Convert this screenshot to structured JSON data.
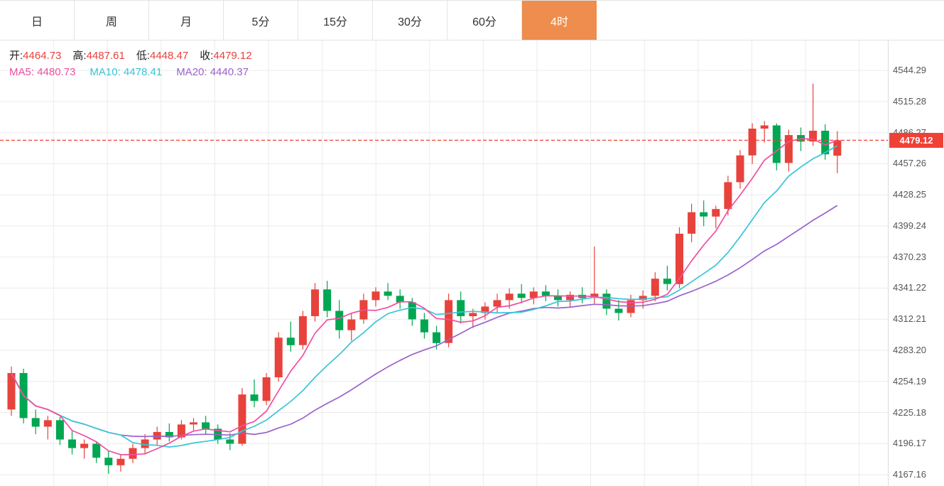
{
  "tabs": [
    {
      "label": "日",
      "active": false
    },
    {
      "label": "周",
      "active": false
    },
    {
      "label": "月",
      "active": false
    },
    {
      "label": "5分",
      "active": false
    },
    {
      "label": "15分",
      "active": false
    },
    {
      "label": "30分",
      "active": false
    },
    {
      "label": "60分",
      "active": false
    },
    {
      "label": "4时",
      "active": true
    }
  ],
  "ohlc": {
    "open_label": "开:",
    "open": "4464.73",
    "high_label": "高:",
    "high": "4487.61",
    "low_label": "低:",
    "low": "4448.47",
    "close_label": "收:",
    "close": "4479.12"
  },
  "ma_info": {
    "ma5_label": "MA5:",
    "ma5": "4480.73",
    "ma10_label": "MA10:",
    "ma10": "4478.41",
    "ma20_label": "MA20:",
    "ma20": "4440.37"
  },
  "price_tag": "4479.12",
  "colors": {
    "up": "#e8423c",
    "down": "#00a651",
    "ma5": "#f04fa0",
    "ma10": "#38c5d8",
    "ma20": "#9b62cc",
    "active_tab": "#ee8d4d",
    "dashed_line": "#ef4136",
    "grid": "#ebebeb",
    "axis_separator": "#dcdcdc",
    "axis_text": "#555555"
  },
  "chart_data": {
    "type": "candlestick",
    "timeframe_selected": "4时",
    "ylim": [
      4156.6,
      4572.2
    ],
    "y_axis_labels": [
      "4544.29",
      "4515.28",
      "4486.27",
      "4457.26",
      "4428.25",
      "4399.24",
      "4370.23",
      "4341.22",
      "4312.21",
      "4283.20",
      "4254.19",
      "4225.18",
      "4196.17",
      "4167.16"
    ],
    "y_tick_step": 29.01,
    "current_price": 4479.12,
    "last_bar": {
      "open": 4464.73,
      "high": 4487.61,
      "low": 4448.47,
      "close": 4479.12
    },
    "moving_averages": {
      "MA5": 4480.73,
      "MA10": 4478.41,
      "MA20": 4440.37
    },
    "legend": [
      "MA5",
      "MA10",
      "MA20"
    ],
    "grid": true,
    "candles": [
      [
        4228,
        4268,
        4222,
        4262
      ],
      [
        4262,
        4266,
        4215,
        4220
      ],
      [
        4220,
        4228,
        4205,
        4212
      ],
      [
        4212,
        4222,
        4200,
        4218
      ],
      [
        4218,
        4221,
        4195,
        4200
      ],
      [
        4200,
        4208,
        4186,
        4192
      ],
      [
        4192,
        4200,
        4182,
        4196
      ],
      [
        4196,
        4198,
        4178,
        4183
      ],
      [
        4183,
        4190,
        4168,
        4176
      ],
      [
        4176,
        4186,
        4170,
        4182
      ],
      [
        4182,
        4196,
        4178,
        4192
      ],
      [
        4192,
        4205,
        4186,
        4200
      ],
      [
        4200,
        4212,
        4195,
        4207
      ],
      [
        4207,
        4215,
        4198,
        4202
      ],
      [
        4202,
        4218,
        4200,
        4214
      ],
      [
        4214,
        4220,
        4208,
        4216
      ],
      [
        4216,
        4222,
        4205,
        4210
      ],
      [
        4210,
        4214,
        4196,
        4200
      ],
      [
        4200,
        4206,
        4190,
        4196
      ],
      [
        4196,
        4248,
        4194,
        4242
      ],
      [
        4242,
        4256,
        4230,
        4236
      ],
      [
        4236,
        4262,
        4232,
        4258
      ],
      [
        4258,
        4300,
        4254,
        4295
      ],
      [
        4295,
        4310,
        4282,
        4288
      ],
      [
        4288,
        4320,
        4284,
        4315
      ],
      [
        4315,
        4346,
        4310,
        4340
      ],
      [
        4340,
        4348,
        4314,
        4320
      ],
      [
        4320,
        4330,
        4294,
        4302
      ],
      [
        4302,
        4318,
        4292,
        4312
      ],
      [
        4312,
        4336,
        4308,
        4330
      ],
      [
        4330,
        4342,
        4324,
        4338
      ],
      [
        4338,
        4346,
        4330,
        4334
      ],
      [
        4334,
        4340,
        4322,
        4328
      ],
      [
        4328,
        4332,
        4306,
        4312
      ],
      [
        4312,
        4318,
        4294,
        4300
      ],
      [
        4300,
        4306,
        4284,
        4290
      ],
      [
        4290,
        4336,
        4286,
        4330
      ],
      [
        4330,
        4338,
        4308,
        4315
      ],
      [
        4315,
        4322,
        4304,
        4318
      ],
      [
        4318,
        4328,
        4312,
        4324
      ],
      [
        4324,
        4336,
        4318,
        4330
      ],
      [
        4330,
        4341,
        4322,
        4336
      ],
      [
        4336,
        4345,
        4327,
        4332
      ],
      [
        4332,
        4342,
        4326,
        4338
      ],
      [
        4338,
        4344,
        4329,
        4334
      ],
      [
        4334,
        4340,
        4324,
        4330
      ],
      [
        4330,
        4338,
        4323,
        4335
      ],
      [
        4335,
        4342,
        4327,
        4332
      ],
      [
        4332,
        4380,
        4326,
        4336
      ],
      [
        4336,
        4340,
        4316,
        4322
      ],
      [
        4322,
        4330,
        4311,
        4318
      ],
      [
        4318,
        4335,
        4314,
        4330
      ],
      [
        4330,
        4339,
        4322,
        4334
      ],
      [
        4334,
        4356,
        4329,
        4350
      ],
      [
        4350,
        4362,
        4339,
        4345
      ],
      [
        4345,
        4398,
        4341,
        4392
      ],
      [
        4392,
        4420,
        4384,
        4412
      ],
      [
        4412,
        4423,
        4399,
        4408
      ],
      [
        4408,
        4418,
        4397,
        4415
      ],
      [
        4415,
        4446,
        4409,
        4440
      ],
      [
        4440,
        4470,
        4434,
        4465
      ],
      [
        4465,
        4495,
        4457,
        4490
      ],
      [
        4490,
        4497,
        4477,
        4493
      ],
      [
        4493,
        4495,
        4451,
        4458
      ],
      [
        4458,
        4489,
        4450,
        4484
      ],
      [
        4484,
        4491,
        4469,
        4478
      ],
      [
        4478,
        4532,
        4474,
        4488
      ],
      [
        4488,
        4494,
        4461,
        4466
      ],
      [
        4464.73,
        4487.61,
        4448.47,
        4479.12
      ]
    ]
  }
}
